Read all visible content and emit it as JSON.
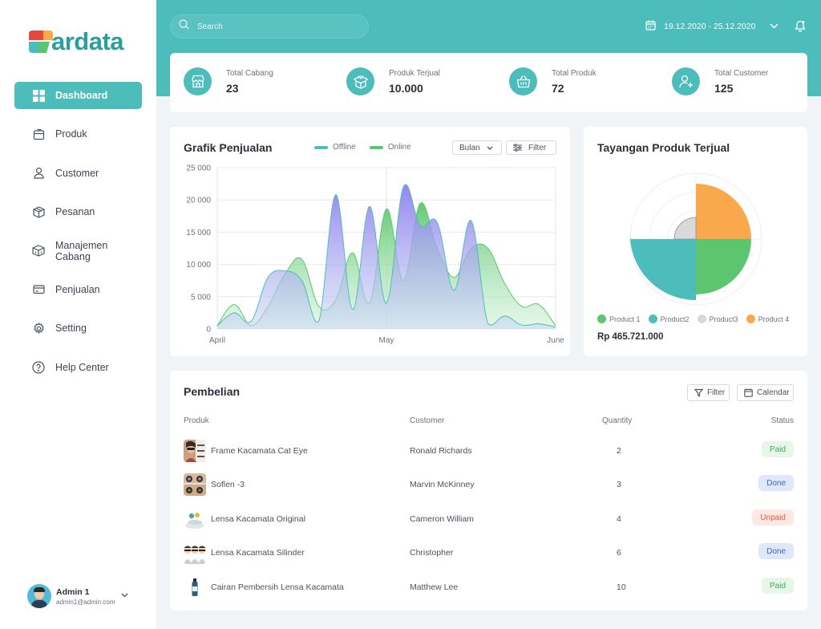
{
  "app": {
    "logo_text": "ardata"
  },
  "sidebar": {
    "items": [
      {
        "label": "Dashboard",
        "icon": "grid-icon",
        "active": true
      },
      {
        "label": "Produk",
        "icon": "box-icon"
      },
      {
        "label": "Customer",
        "icon": "user-icon"
      },
      {
        "label": "Pesanan",
        "icon": "package-icon"
      },
      {
        "label": "Manajemen Cabang",
        "icon": "branch-icon"
      },
      {
        "label": "Penjualan",
        "icon": "card-icon"
      },
      {
        "label": "Setting",
        "icon": "gear-icon"
      },
      {
        "label": "Help Center",
        "icon": "help-icon"
      }
    ],
    "profile": {
      "name": "Admin 1",
      "email": "admin1@admin.com"
    }
  },
  "header": {
    "search_placeholder": "Search",
    "date_range": "19.12.2020 - 25.12.2020"
  },
  "stats": [
    {
      "label": "Total Cabang",
      "value": "23",
      "icon": "store-icon"
    },
    {
      "label": "Produk Terjual",
      "value": "10.000",
      "icon": "open-box-icon"
    },
    {
      "label": "Total Produk",
      "value": "72",
      "icon": "basket-icon"
    },
    {
      "label": "Total Customer",
      "value": "125",
      "icon": "add-user-icon"
    }
  ],
  "sales_chart": {
    "title": "Grafik Penjualan",
    "legend_offline": "Offline",
    "legend_online": "Online",
    "period_select": "Bulan",
    "filter_label": "Filter",
    "colors": {
      "offline": "#4dbdbb",
      "online": "#5cc66e",
      "offline_fill": "#9b8cf0"
    }
  },
  "chart_data": {
    "type": "area",
    "title": "Grafik Penjualan",
    "x_tick_labels": [
      "April",
      "May",
      "June"
    ],
    "y_tick_labels": [
      "0",
      "5 000",
      "10 000",
      "15 000",
      "20 000",
      "25 000"
    ],
    "ylim": [
      0,
      25000
    ],
    "grid": true,
    "legend_placement": "top",
    "x": [
      0,
      0.05,
      0.1,
      0.15,
      0.2,
      0.25,
      0.3,
      0.35,
      0.4,
      0.45,
      0.5,
      0.55,
      0.6,
      0.65,
      0.7,
      0.75,
      0.8,
      0.85,
      0.9,
      0.95,
      1
    ],
    "series": [
      {
        "name": "Offline",
        "values": [
          500,
          2500,
          1200,
          8000,
          9000,
          7500,
          1200,
          20800,
          3000,
          19000,
          4000,
          22000,
          16000,
          16500,
          6000,
          16800,
          800,
          2000,
          600,
          800,
          300
        ]
      },
      {
        "name": "Online",
        "values": [
          500,
          3800,
          500,
          3500,
          8500,
          10800,
          3500,
          4500,
          11800,
          4000,
          18600,
          7500,
          19500,
          12500,
          8000,
          12500,
          12500,
          7000,
          3500,
          3800,
          500
        ]
      }
    ]
  },
  "pie_card": {
    "title": "Tayangan Produk Terjual",
    "total": "Rp 465.721.000",
    "legend": [
      {
        "label": "Product 1",
        "color": "#5cc66e"
      },
      {
        "label": "Product2",
        "color": "#4dbdbb"
      },
      {
        "label": "Product3",
        "color": "#d9d9d9"
      },
      {
        "label": "Product 4",
        "color": "#f9a94b"
      }
    ]
  },
  "pie_data": {
    "type": "pie",
    "segments": [
      {
        "name": "Product 4",
        "radius_fraction": 0.85,
        "quadrant": "top-right",
        "color": "#f9a94b"
      },
      {
        "name": "Product 1",
        "radius_fraction": 0.85,
        "quadrant": "bottom-right",
        "color": "#5cc66e"
      },
      {
        "name": "Product2",
        "radius_fraction": 1.0,
        "quadrant": "left-half",
        "color": "#4dbdbb"
      },
      {
        "name": "Product3",
        "radius_fraction": 0.33,
        "quadrant": "top-left",
        "color": "#d9d9d9"
      }
    ]
  },
  "purchases": {
    "title": "Pembelian",
    "filter_label": "Filter",
    "calendar_label": "Calendar",
    "columns": [
      "Produk",
      "Customer",
      "Quantity",
      "Status"
    ],
    "rows": [
      {
        "product": "Frame Kacamata Cat Eye",
        "customer": "Ronald Richards",
        "qty": "2",
        "status": "Paid",
        "status_kind": "paid"
      },
      {
        "product": "Soflen -3",
        "customer": "Marvin McKinney",
        "qty": "3",
        "status": "Done",
        "status_kind": "done"
      },
      {
        "product": "Lensa Kacamata Original",
        "customer": "Cameron William",
        "qty": "4",
        "status": "Unpaid",
        "status_kind": "unpaid"
      },
      {
        "product": "Lensa Kacamata Silinder",
        "customer": "Christopher",
        "qty": "6",
        "status": "Done",
        "status_kind": "done"
      },
      {
        "product": "Cairan Pembersih Lensa Kacamata",
        "customer": "Matthew Lee",
        "qty": "10",
        "status": "Paid",
        "status_kind": "paid"
      }
    ]
  }
}
